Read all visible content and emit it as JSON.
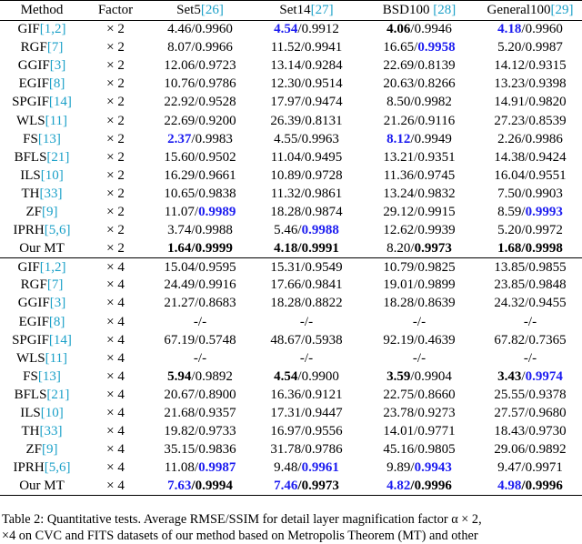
{
  "styles": {
    "bold": {
      "weight": "bold",
      "color": "#000000"
    },
    "bold-blue": {
      "weight": "bold",
      "color": "#1c1cf0"
    },
    "cite": {
      "weight": "normal",
      "color": "#1aa0c8"
    }
  },
  "table": {
    "header": [
      "Method",
      "Factor",
      [
        "Set5",
        {
          "text": "[26]",
          "style": "cite"
        }
      ],
      [
        "Set14",
        {
          "text": "[27]",
          "style": "cite"
        }
      ],
      [
        "BSD100 ",
        {
          "text": "[28]",
          "style": "cite"
        }
      ],
      [
        "General100",
        {
          "text": "[29]",
          "style": "cite"
        }
      ]
    ],
    "groups": [
      {
        "rows": [
          [
            [
              "GIF",
              {
                "text": "[1,2]",
                "style": "cite"
              }
            ],
            "× 2",
            "4.46/0.9960",
            [
              {
                "text": "4.54",
                "style": "bold-blue"
              },
              "/0.9912"
            ],
            [
              {
                "text": "4.06",
                "style": "bold"
              },
              "/0.9946"
            ],
            [
              {
                "text": "4.18",
                "style": "bold-blue"
              },
              "/0.9960"
            ]
          ],
          [
            [
              "RGF",
              {
                "text": "[7]",
                "style": "cite"
              }
            ],
            "× 2",
            "8.07/0.9966",
            "11.52/0.9941",
            [
              "16.65/",
              {
                "text": "0.9958",
                "style": "bold-blue"
              }
            ],
            "5.20/0.9987"
          ],
          [
            [
              "GGIF",
              {
                "text": "[3]",
                "style": "cite"
              }
            ],
            "× 2",
            "12.06/0.9723",
            "13.14/0.9284",
            "22.69/0.8139",
            "14.12/0.9315"
          ],
          [
            [
              "EGIF",
              {
                "text": "[8]",
                "style": "cite"
              }
            ],
            "× 2",
            "10.76/0.9786",
            "12.30/0.9514",
            "20.63/0.8266",
            "13.23/0.9398"
          ],
          [
            [
              "SPGIF",
              {
                "text": "[14]",
                "style": "cite"
              }
            ],
            "× 2",
            "22.92/0.9528",
            "17.97/0.9474",
            "8.50/0.9982",
            "14.91/0.9820"
          ],
          [
            [
              "WLS",
              {
                "text": "[11]",
                "style": "cite"
              }
            ],
            "× 2",
            "22.69/0.9200",
            "26.39/0.8131",
            "21.26/0.9116",
            "27.23/0.8539"
          ],
          [
            [
              "FS",
              {
                "text": "[13]",
                "style": "cite"
              }
            ],
            "× 2",
            [
              {
                "text": "2.37",
                "style": "bold-blue"
              },
              "/0.9983"
            ],
            "4.55/0.9963",
            [
              {
                "text": "8.12",
                "style": "bold-blue"
              },
              "/0.9949"
            ],
            "2.26/0.9986"
          ],
          [
            [
              "BFLS",
              {
                "text": "[21]",
                "style": "cite"
              }
            ],
            "× 2",
            "15.60/0.9502",
            "11.04/0.9495",
            "13.21/0.9351",
            "14.38/0.9424"
          ],
          [
            [
              "ILS",
              {
                "text": "[10]",
                "style": "cite"
              }
            ],
            "× 2",
            "16.29/0.9661",
            "10.89/0.9728",
            "11.36/0.9745",
            "16.04/0.9551"
          ],
          [
            [
              "TH",
              {
                "text": "[33]",
                "style": "cite"
              }
            ],
            "× 2",
            "10.65/0.9838",
            "11.32/0.9861",
            "13.24/0.9832",
            "7.50/0.9903"
          ],
          [
            [
              "ZF",
              {
                "text": "[9]",
                "style": "cite"
              }
            ],
            "× 2",
            [
              "11.07/",
              {
                "text": "0.9989",
                "style": "bold-blue"
              }
            ],
            "18.28/0.9874",
            "29.12/0.9915",
            [
              "8.59/",
              {
                "text": "0.9993",
                "style": "bold-blue"
              }
            ]
          ],
          [
            [
              "IPRH",
              {
                "text": "[5,6]",
                "style": "cite"
              }
            ],
            "× 2",
            "3.74/0.9988",
            [
              "5.46/",
              {
                "text": "0.9988",
                "style": "bold-blue"
              }
            ],
            "12.62/0.9939",
            "5.20/0.9972"
          ],
          [
            "Our MT",
            "× 2",
            [
              {
                "text": "1.64/0.9999",
                "style": "bold"
              }
            ],
            [
              {
                "text": "4.18/0.9991",
                "style": "bold"
              }
            ],
            [
              "8.20/",
              {
                "text": "0.9973",
                "style": "bold"
              }
            ],
            [
              {
                "text": "1.68/0.9998",
                "style": "bold"
              }
            ]
          ]
        ]
      },
      {
        "rows": [
          [
            [
              "GIF",
              {
                "text": "[1,2]",
                "style": "cite"
              }
            ],
            "× 4",
            "15.04/0.9595",
            "15.31/0.9549",
            "10.79/0.9825",
            "13.85/0.9855"
          ],
          [
            [
              "RGF",
              {
                "text": "[7]",
                "style": "cite"
              }
            ],
            "× 4",
            "24.49/0.9916",
            "17.66/0.9841",
            "19.01/0.9899",
            "23.85/0.9848"
          ],
          [
            [
              "GGIF",
              {
                "text": "[3]",
                "style": "cite"
              }
            ],
            "× 4",
            "21.27/0.8683",
            "18.28/0.8822",
            "18.28/0.8639",
            "24.32/0.9455"
          ],
          [
            [
              "EGIF",
              {
                "text": "[8]",
                "style": "cite"
              }
            ],
            "× 4",
            "-/-",
            "-/-",
            "-/-",
            "-/-"
          ],
          [
            [
              "SPGIF",
              {
                "text": "[14]",
                "style": "cite"
              }
            ],
            "× 4",
            "67.19/0.5748",
            "48.67/0.5938",
            "92.19/0.4639",
            "67.82/0.7365"
          ],
          [
            [
              "WLS",
              {
                "text": "[11]",
                "style": "cite"
              }
            ],
            "× 4",
            "-/-",
            "-/-",
            "-/-",
            "-/-"
          ],
          [
            [
              "FS",
              {
                "text": "[13]",
                "style": "cite"
              }
            ],
            "× 4",
            [
              {
                "text": "5.94",
                "style": "bold"
              },
              "/0.9892"
            ],
            [
              {
                "text": "4.54",
                "style": "bold"
              },
              "/0.9900"
            ],
            [
              {
                "text": "3.59",
                "style": "bold"
              },
              "/0.9904"
            ],
            [
              {
                "text": "3.43",
                "style": "bold"
              },
              "/",
              {
                "text": "0.9974",
                "style": "bold-blue"
              }
            ]
          ],
          [
            [
              "BFLS",
              {
                "text": "[21]",
                "style": "cite"
              }
            ],
            "× 4",
            "20.67/0.8900",
            "16.36/0.9121",
            "22.75/0.8660",
            "25.55/0.9378"
          ],
          [
            [
              "ILS",
              {
                "text": "[10]",
                "style": "cite"
              }
            ],
            "× 4",
            "21.68/0.9357",
            "17.31/0.9447",
            "23.78/0.9273",
            "27.57/0.9680"
          ],
          [
            [
              "TH",
              {
                "text": "[33]",
                "style": "cite"
              }
            ],
            "× 4",
            "19.82/0.9733",
            "16.97/0.9556",
            "14.01/0.9771",
            "18.43/0.9730"
          ],
          [
            [
              "ZF",
              {
                "text": "[9]",
                "style": "cite"
              }
            ],
            "× 4",
            "35.15/0.9836",
            "31.78/0.9786",
            "45.16/0.9805",
            "29.06/0.9892"
          ],
          [
            [
              "IPRH",
              {
                "text": "[5,6]",
                "style": "cite"
              }
            ],
            "× 4",
            [
              "11.08/",
              {
                "text": "0.9987",
                "style": "bold-blue"
              }
            ],
            [
              "9.48/",
              {
                "text": "0.9961",
                "style": "bold-blue"
              }
            ],
            [
              "9.89/",
              {
                "text": "0.9943",
                "style": "bold-blue"
              }
            ],
            "9.47/0.9971"
          ],
          [
            "Our MT",
            "× 4",
            [
              {
                "text": "7.63",
                "style": "bold-blue"
              },
              {
                "text": "/0.9994",
                "style": "bold"
              }
            ],
            [
              {
                "text": "7.46",
                "style": "bold-blue"
              },
              {
                "text": "/0.9973",
                "style": "bold"
              }
            ],
            [
              {
                "text": "4.82",
                "style": "bold-blue"
              },
              {
                "text": "/0.9996",
                "style": "bold"
              }
            ],
            [
              {
                "text": "4.98",
                "style": "bold-blue"
              },
              {
                "text": "/0.9996",
                "style": "bold"
              }
            ]
          ]
        ]
      }
    ]
  },
  "caption": {
    "lines": [
      "Table 2: Quantitative tests. Average RMSE/SSIM for detail layer magnification factor α × 2,",
      "×4 on CVC and FITS datasets of our method based on Metropolis Theorem (MT) and other"
    ]
  }
}
